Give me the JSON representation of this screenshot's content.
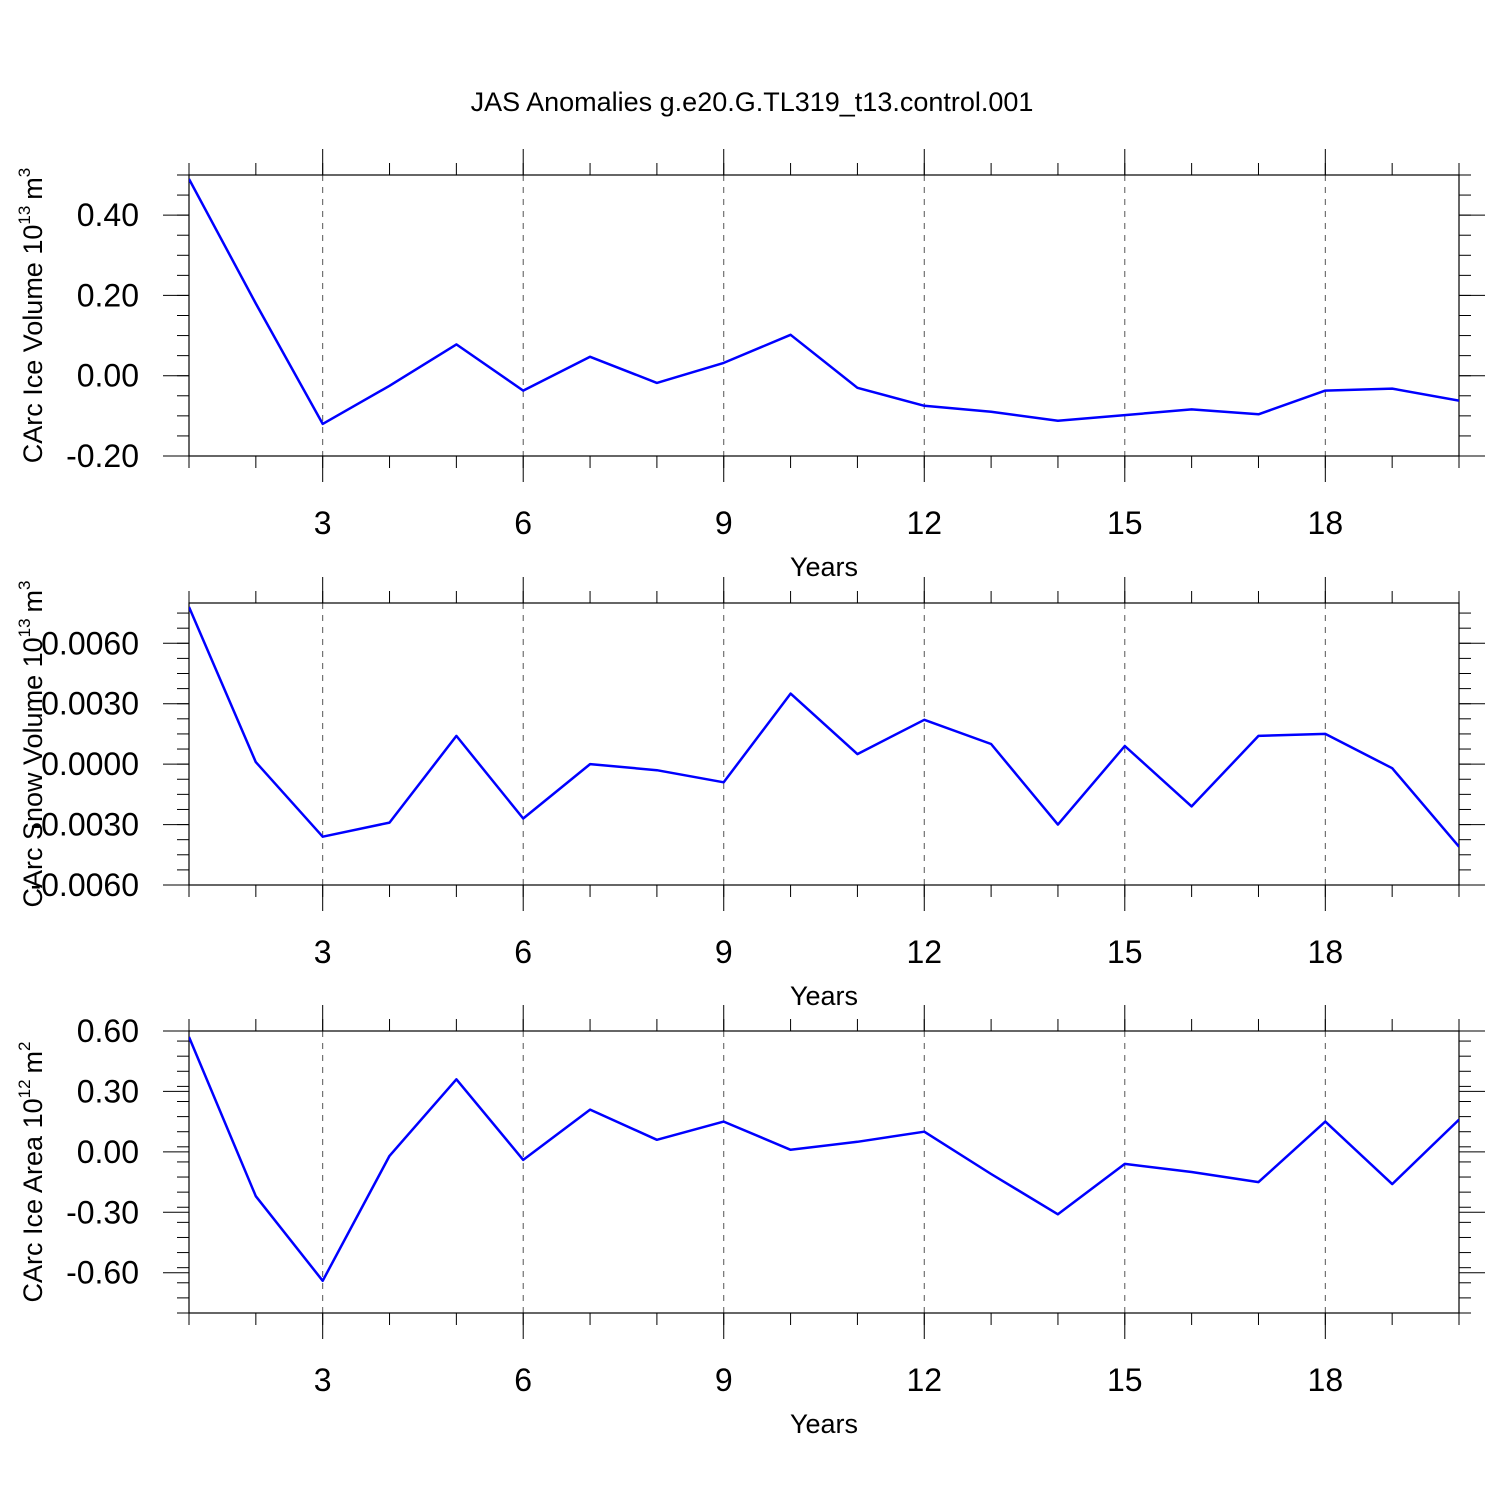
{
  "title": "JAS Anomalies g.e20.G.TL319_t13.control.001",
  "colors": {
    "series": "#0000ff",
    "axis": "#000000",
    "grid": "#555555"
  },
  "chart_data": [
    {
      "type": "line",
      "ylabel": "CArc Ice Volume 10",
      "ylabel_exponent": "13",
      "ylabel_unit": "m",
      "ylabel_unit_exponent": "3",
      "xlabel": "Years",
      "xlim": [
        1,
        20
      ],
      "ylim": [
        -0.2,
        0.5
      ],
      "x_ticks": [
        3,
        6,
        9,
        12,
        15,
        18
      ],
      "x_tick_labels": [
        "3",
        "6",
        "9",
        "12",
        "15",
        "18"
      ],
      "y_ticks": [
        -0.2,
        0.0,
        0.2,
        0.4
      ],
      "y_tick_labels": [
        "-0.20",
        "0.00",
        "0.20",
        "0.40"
      ],
      "x": [
        1,
        2,
        3,
        4,
        5,
        6,
        7,
        8,
        9,
        10,
        11,
        12,
        13,
        14,
        15,
        16,
        17,
        18,
        19,
        20
      ],
      "values": [
        0.49,
        0.18,
        -0.12,
        -0.025,
        0.078,
        -0.037,
        0.047,
        -0.018,
        0.032,
        0.102,
        -0.03,
        -0.075,
        -0.09,
        -0.112,
        -0.098,
        -0.084,
        -0.096,
        -0.037,
        -0.032,
        -0.062
      ]
    },
    {
      "type": "line",
      "ylabel": "CArc Snow Volume 10",
      "ylabel_exponent": "13",
      "ylabel_unit": "m",
      "ylabel_unit_exponent": "3",
      "xlabel": "Years",
      "xlim": [
        1,
        20
      ],
      "ylim": [
        -0.006,
        0.008
      ],
      "x_ticks": [
        3,
        6,
        9,
        12,
        15,
        18
      ],
      "x_tick_labels": [
        "3",
        "6",
        "9",
        "12",
        "15",
        "18"
      ],
      "y_ticks": [
        -0.006,
        -0.003,
        0.0,
        0.003,
        0.006
      ],
      "y_tick_labels": [
        "-0.0060",
        "-0.0030",
        "0.0000",
        "0.0030",
        "0.0060"
      ],
      "x": [
        1,
        2,
        3,
        4,
        5,
        6,
        7,
        8,
        9,
        10,
        11,
        12,
        13,
        14,
        15,
        16,
        17,
        18,
        19,
        20
      ],
      "values": [
        0.0078,
        0.0001,
        -0.0036,
        -0.0029,
        0.0014,
        -0.0027,
        0.0,
        -0.0003,
        -0.0009,
        0.0035,
        0.0005,
        0.0022,
        0.001,
        -0.003,
        0.0009,
        -0.0021,
        0.0014,
        0.0015,
        -0.0002,
        -0.0041
      ]
    },
    {
      "type": "line",
      "ylabel": "CArc Ice Area 10",
      "ylabel_exponent": "12",
      "ylabel_unit": "m",
      "ylabel_unit_exponent": "2",
      "xlabel": "Years",
      "xlim": [
        1,
        20
      ],
      "ylim": [
        -0.8,
        0.6
      ],
      "x_ticks": [
        3,
        6,
        9,
        12,
        15,
        18
      ],
      "x_tick_labels": [
        "3",
        "6",
        "9",
        "12",
        "15",
        "18"
      ],
      "y_ticks": [
        -0.6,
        -0.3,
        0.0,
        0.3,
        0.6
      ],
      "y_tick_labels": [
        "-0.60",
        "-0.30",
        "0.00",
        "0.30",
        "0.60"
      ],
      "x": [
        1,
        2,
        3,
        4,
        5,
        6,
        7,
        8,
        9,
        10,
        11,
        12,
        13,
        14,
        15,
        16,
        17,
        18,
        19,
        20
      ],
      "values": [
        0.57,
        -0.22,
        -0.64,
        -0.02,
        0.36,
        -0.04,
        0.21,
        0.06,
        0.15,
        0.01,
        0.05,
        0.1,
        -0.11,
        -0.31,
        -0.06,
        -0.1,
        -0.15,
        0.15,
        -0.16,
        0.16
      ]
    }
  ]
}
